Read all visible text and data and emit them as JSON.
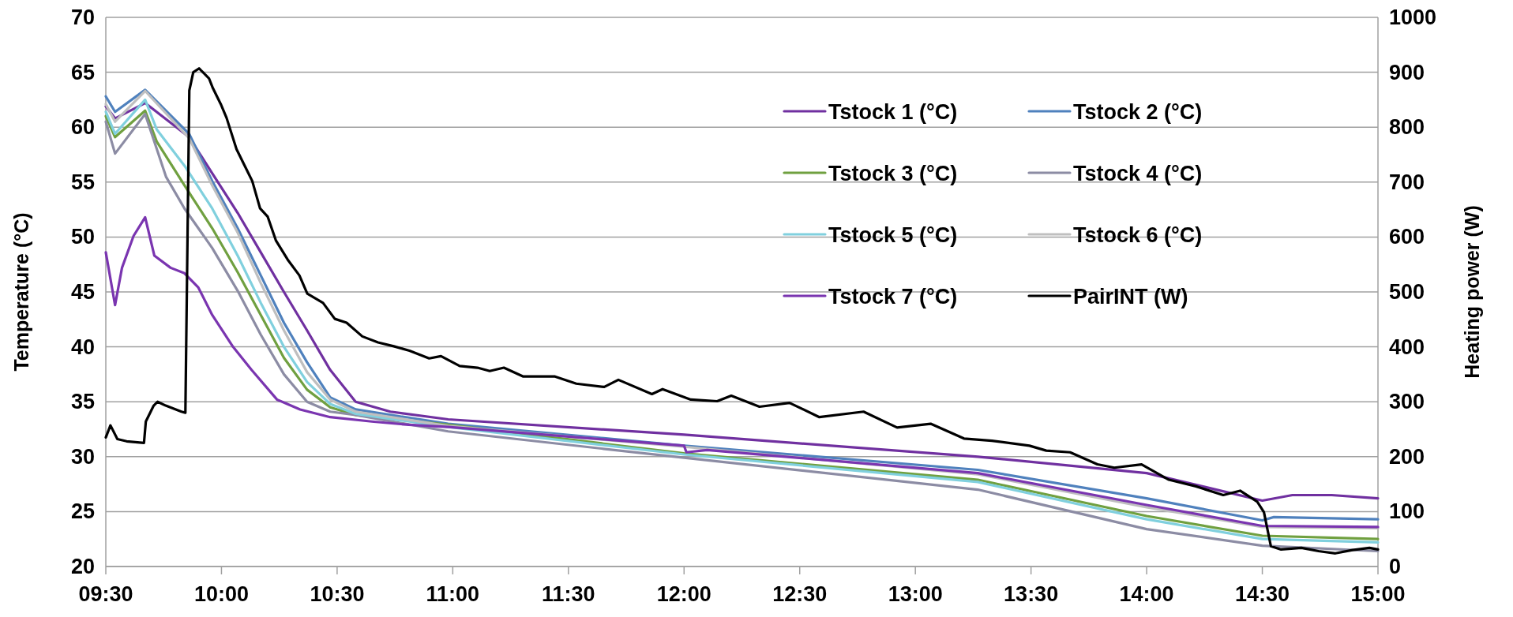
{
  "chart_data": {
    "type": "line",
    "ylabel": "Temperature (°C)",
    "y2label": "Heating power (W)",
    "xlim": [
      9.5,
      15
    ],
    "xticks": [
      {
        "value": 9.5,
        "label": "09:30"
      },
      {
        "value": 10,
        "label": "10:00"
      },
      {
        "value": 10.5,
        "label": "10:30"
      },
      {
        "value": 11,
        "label": "11:00"
      },
      {
        "value": 11.5,
        "label": "11:30"
      },
      {
        "value": 12,
        "label": "12:00"
      },
      {
        "value": 12.5,
        "label": "12:30"
      },
      {
        "value": 13,
        "label": "13:00"
      },
      {
        "value": 13.5,
        "label": "13:30"
      },
      {
        "value": 14,
        "label": "14:00"
      },
      {
        "value": 14.5,
        "label": "14:30"
      },
      {
        "value": 15,
        "label": "15:00"
      }
    ],
    "ylim": [
      20,
      70
    ],
    "yticks": [
      20,
      25,
      30,
      35,
      40,
      45,
      50,
      55,
      60,
      65,
      70
    ],
    "y2lim": [
      0,
      1000
    ],
    "y2ticks": [
      0,
      100,
      200,
      300,
      400,
      500,
      600,
      700,
      800,
      900,
      1000
    ],
    "grid": "y",
    "legend": "top right",
    "line_style": "solid",
    "marker": "none",
    "series": [
      {
        "name": "Tstock 1 (°C)",
        "color": "#7030a0",
        "x": [
          9.5,
          9.54,
          9.67,
          9.86,
          9.96,
          10.07,
          10.17,
          10.27,
          10.37,
          10.47,
          10.58,
          10.73,
          10.98,
          12.0,
          13.27,
          14.0,
          14.5,
          14.63,
          14.8,
          15.0
        ],
        "values": [
          61.9,
          60.8,
          62.2,
          59.1,
          55.8,
          52.2,
          48.6,
          45.0,
          41.5,
          37.9,
          35.0,
          34.1,
          33.4,
          32.0,
          30.0,
          28.5,
          26.0,
          26.5,
          26.5,
          26.2
        ]
      },
      {
        "name": "Tstock 2 (°C)",
        "color": "#4f81bd",
        "x": [
          9.5,
          9.54,
          9.67,
          9.86,
          9.96,
          10.07,
          10.17,
          10.27,
          10.37,
          10.47,
          10.58,
          10.73,
          10.98,
          12.0,
          13.27,
          14.0,
          14.5,
          14.55,
          15.0
        ],
        "values": [
          62.8,
          61.4,
          63.4,
          59.4,
          55.1,
          50.8,
          46.5,
          42.2,
          38.6,
          35.4,
          34.3,
          33.8,
          33.0,
          31.0,
          28.8,
          26.2,
          24.2,
          24.5,
          24.3
        ]
      },
      {
        "name": "Tstock 3 (°C)",
        "color": "#70a040",
        "x": [
          9.5,
          9.54,
          9.67,
          9.72,
          9.84,
          9.96,
          10.07,
          10.17,
          10.27,
          10.37,
          10.47,
          10.58,
          10.98,
          12.0,
          13.27,
          14.0,
          14.5,
          15.0
        ],
        "values": [
          61.0,
          59.1,
          61.5,
          58.7,
          54.7,
          50.8,
          46.8,
          42.9,
          39.0,
          36.1,
          34.5,
          33.8,
          32.9,
          30.3,
          27.9,
          24.6,
          22.8,
          22.5
        ]
      },
      {
        "name": "Tstock 4 (°C)",
        "color": "#8c8ca4",
        "x": [
          9.5,
          9.54,
          9.67,
          9.76,
          9.84,
          9.96,
          10.07,
          10.17,
          10.27,
          10.37,
          10.47,
          10.58,
          10.98,
          12.0,
          13.27,
          14.0,
          14.5,
          15.0
        ],
        "values": [
          60.5,
          57.6,
          61.2,
          55.5,
          52.6,
          49.0,
          45.1,
          41.1,
          37.5,
          35.0,
          34.1,
          33.8,
          32.3,
          29.9,
          27.0,
          23.4,
          21.9,
          21.4
        ]
      },
      {
        "name": "Tstock 5 (°C)",
        "color": "#80d0de",
        "x": [
          9.5,
          9.54,
          9.67,
          9.72,
          9.84,
          9.96,
          10.07,
          10.17,
          10.27,
          10.37,
          10.47,
          10.58,
          10.98,
          12.0,
          13.27,
          14.0,
          14.5,
          15.0
        ],
        "values": [
          61.4,
          59.4,
          62.5,
          59.8,
          56.5,
          52.6,
          48.3,
          44.0,
          40.0,
          36.8,
          34.8,
          33.9,
          32.7,
          30.2,
          27.7,
          24.3,
          22.5,
          22.2
        ]
      },
      {
        "name": "Tstock 6 (°C)",
        "color": "#bfbfbf",
        "x": [
          9.5,
          9.54,
          9.67,
          9.86,
          9.96,
          10.07,
          10.17,
          10.27,
          10.37,
          10.47,
          10.58,
          10.98,
          12.0,
          13.27,
          14.0,
          14.5,
          15.0
        ],
        "values": [
          62.1,
          60.5,
          63.3,
          59.0,
          54.7,
          50.4,
          45.8,
          41.5,
          37.7,
          35.2,
          34.1,
          32.8,
          30.9,
          28.4,
          25.4,
          23.6,
          23.5
        ]
      },
      {
        "name": "Tstock 7 (°C)",
        "color": "#7a35b0",
        "x": [
          9.5,
          9.54,
          9.57,
          9.62,
          9.67,
          9.71,
          9.78,
          9.84,
          9.9,
          9.96,
          10.05,
          10.13,
          10.24,
          10.34,
          10.47,
          10.65,
          10.81,
          10.98,
          12.0,
          12.01,
          12.1,
          13.27,
          14.0,
          14.5,
          15.0
        ],
        "values": [
          48.6,
          43.8,
          47.2,
          50.1,
          51.8,
          48.3,
          47.2,
          46.7,
          45.4,
          42.9,
          40.0,
          37.9,
          35.2,
          34.3,
          33.6,
          33.2,
          32.9,
          32.7,
          31.0,
          30.4,
          30.6,
          28.5,
          25.6,
          23.7,
          23.6
        ]
      },
      {
        "name": "PairINT (W)",
        "color": "#000000",
        "axis": "y2",
        "x": [
          9.5,
          9.52,
          9.55,
          9.59,
          9.665,
          9.673,
          9.707,
          9.724,
          9.759,
          9.827,
          9.844,
          9.861,
          9.878,
          9.903,
          9.92,
          9.946,
          9.963,
          9.997,
          10.022,
          10.065,
          10.099,
          10.133,
          10.167,
          10.2,
          10.235,
          10.286,
          10.337,
          10.371,
          10.439,
          10.49,
          10.541,
          10.609,
          10.677,
          10.745,
          10.813,
          10.898,
          10.949,
          11.03,
          11.107,
          11.16,
          11.221,
          11.305,
          11.442,
          11.534,
          11.655,
          11.716,
          11.861,
          11.907,
          12.029,
          12.143,
          12.204,
          12.326,
          12.456,
          12.585,
          12.776,
          12.921,
          13.066,
          13.21,
          13.331,
          13.493,
          13.566,
          13.669,
          13.787,
          13.86,
          13.978,
          14.096,
          14.213,
          14.331,
          14.404,
          14.478,
          14.507,
          14.537,
          14.581,
          14.669,
          14.743,
          14.816,
          14.89,
          14.963,
          15.0
        ],
        "values": [
          235,
          257,
          232,
          228,
          225,
          264,
          293,
          300,
          293,
          282,
          280,
          867,
          900,
          907,
          900,
          889,
          871,
          842,
          817,
          760,
          731,
          702,
          652,
          637,
          594,
          559,
          530,
          497,
          480,
          451,
          444,
          419,
          408,
          401,
          393,
          379,
          383,
          365,
          362,
          356,
          362,
          346,
          346,
          333,
          327,
          340,
          314,
          323,
          304,
          301,
          311,
          291,
          298,
          272,
          282,
          253,
          260,
          233,
          229,
          220,
          211,
          208,
          186,
          180,
          186,
          158,
          146,
          130,
          138,
          118,
          99,
          37,
          31,
          34,
          28,
          24,
          30,
          34,
          31
        ]
      }
    ]
  }
}
